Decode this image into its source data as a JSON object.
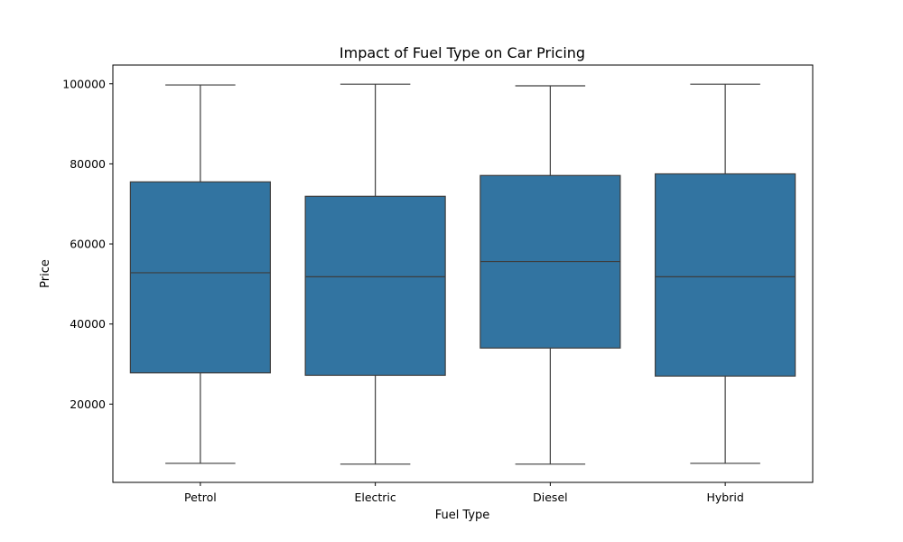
{
  "chart_data": {
    "type": "box",
    "title": "Impact of Fuel Type on Car Pricing",
    "xlabel": "Fuel Type",
    "ylabel": "Price",
    "categories": [
      "Petrol",
      "Electric",
      "Diesel",
      "Hybrid"
    ],
    "boxes": [
      {
        "category": "Petrol",
        "min": 5200,
        "q1": 27800,
        "median": 52800,
        "q3": 75500,
        "max": 99700
      },
      {
        "category": "Electric",
        "min": 5000,
        "q1": 27200,
        "median": 51800,
        "q3": 71900,
        "max": 99900
      },
      {
        "category": "Diesel",
        "min": 5000,
        "q1": 34000,
        "median": 55600,
        "q3": 77100,
        "max": 99500
      },
      {
        "category": "Hybrid",
        "min": 5200,
        "q1": 27000,
        "median": 51800,
        "q3": 77500,
        "max": 99900
      }
    ],
    "ylim": [
      447,
      104683
    ],
    "yticks": [
      20000,
      40000,
      60000,
      80000,
      100000
    ],
    "ytick_labels": [
      "20000",
      "40000",
      "60000",
      "80000",
      "100000"
    ],
    "box_color": "#3274a1",
    "line_color": "#3d3d3d",
    "grid": false,
    "legend": false
  }
}
